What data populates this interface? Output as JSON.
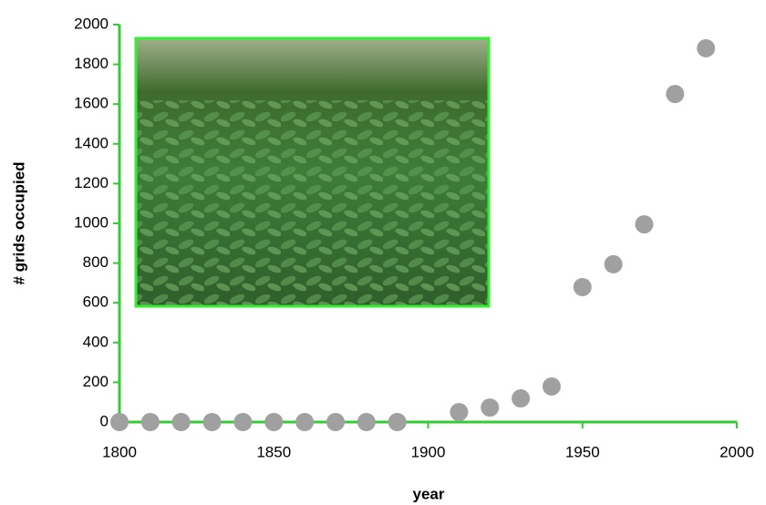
{
  "chart_data": {
    "type": "scatter",
    "x_label": "year",
    "y_label": "# grids occupied",
    "x": [
      1800,
      1810,
      1820,
      1830,
      1840,
      1850,
      1860,
      1870,
      1880,
      1890,
      1910,
      1920,
      1930,
      1940,
      1950,
      1960,
      1970,
      1980,
      1990
    ],
    "values": [
      0,
      0,
      0,
      0,
      0,
      0,
      0,
      0,
      0,
      0,
      50,
      73,
      119,
      179,
      679,
      794,
      995,
      1651,
      1881
    ],
    "color": "#a0a0a0",
    "axis_color": "#33cc33",
    "xlim": [
      1800,
      2000
    ],
    "xticks": [
      1800,
      1850,
      1900,
      1950,
      2000
    ],
    "ylim": [
      0,
      2000
    ],
    "yticks": [
      0,
      200,
      400,
      600,
      800,
      1000,
      1200,
      1400,
      1600,
      1800,
      2000
    ],
    "grid": false
  }
}
